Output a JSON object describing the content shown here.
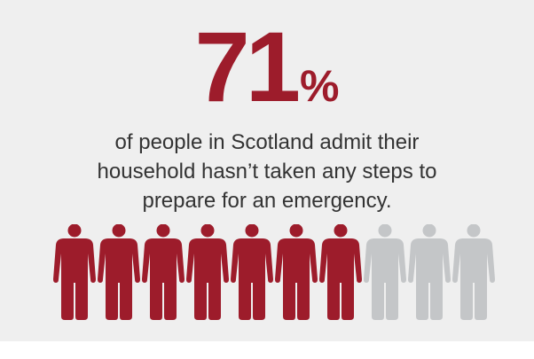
{
  "headline": {
    "number": "71",
    "percent_sign": "%"
  },
  "caption": {
    "lines": [
      "of people in Scotland admit their",
      "household hasn’t taken any steps to",
      "prepare for an emergency."
    ]
  },
  "pictogram": {
    "total_figures": 10,
    "highlighted_figures": 7,
    "icon": "person-icon"
  },
  "colors": {
    "accent": "#9d1c2b",
    "inactive": "#c4c6c8",
    "background": "#efefef",
    "text": "#333333"
  }
}
